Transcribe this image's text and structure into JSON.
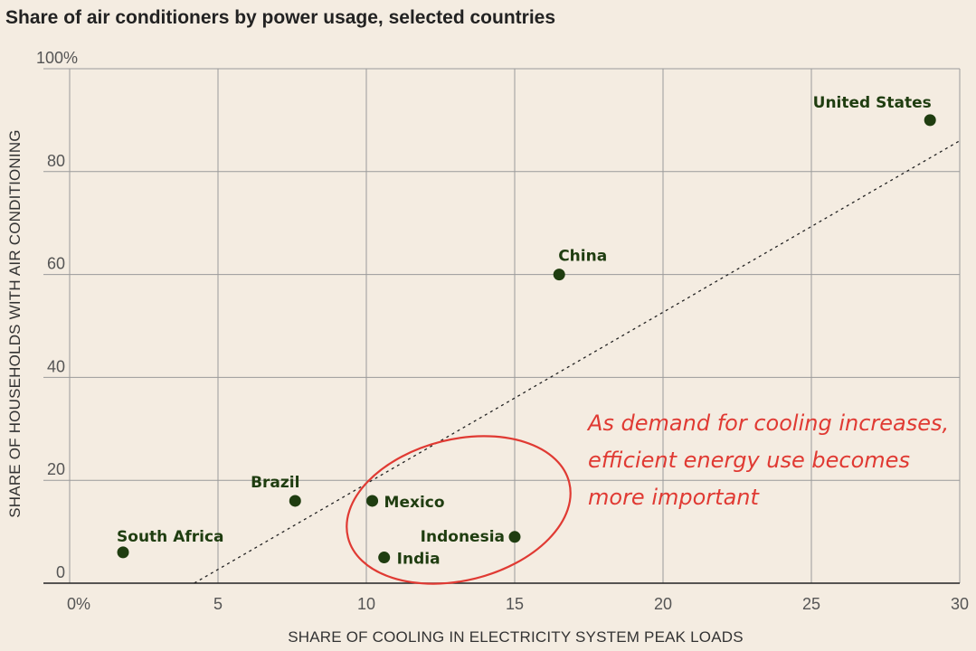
{
  "title": "Share of air conditioners by power usage, selected countries",
  "colors": {
    "background": "#f4ece1",
    "point": "#1f3d10",
    "grid": "#9a9a9a",
    "trend": "#222222",
    "annotation": "#e03a33"
  },
  "chart_data": {
    "type": "scatter",
    "title": "Share of air conditioners by power usage, selected countries",
    "xlabel": "SHARE OF COOLING IN ELECTRICITY SYSTEM PEAK LOADS",
    "ylabel": "SHARE OF HOUSEHOLDS WITH AIR CONDITIONING",
    "xlim": [
      0,
      30
    ],
    "ylim": [
      0,
      100
    ],
    "x_ticks": [
      0,
      5,
      10,
      15,
      20,
      25,
      30
    ],
    "x_tick_labels": [
      "0%",
      "5",
      "10",
      "15",
      "20",
      "25",
      "30"
    ],
    "y_ticks": [
      0,
      20,
      40,
      60,
      80,
      100
    ],
    "y_tick_labels": [
      "0",
      "20",
      "40",
      "60",
      "80",
      "100%"
    ],
    "grid": true,
    "points": [
      {
        "label": "United States",
        "x": 29.0,
        "y": 90
      },
      {
        "label": "China",
        "x": 16.5,
        "y": 60
      },
      {
        "label": "Brazil",
        "x": 7.6,
        "y": 16
      },
      {
        "label": "Mexico",
        "x": 10.2,
        "y": 16
      },
      {
        "label": "South Africa",
        "x": 1.8,
        "y": 6
      },
      {
        "label": "Indonesia",
        "x": 15.0,
        "y": 9
      },
      {
        "label": "India",
        "x": 10.6,
        "y": 5
      }
    ],
    "trendline": {
      "style": "dotted",
      "from": [
        4.2,
        0
      ],
      "to": [
        30,
        86
      ]
    },
    "annotation": {
      "lines": [
        "As demand for cooling increases,",
        "efficient energy use becomes",
        "more important"
      ],
      "circled_points": [
        "Mexico",
        "Indonesia",
        "India"
      ]
    }
  }
}
